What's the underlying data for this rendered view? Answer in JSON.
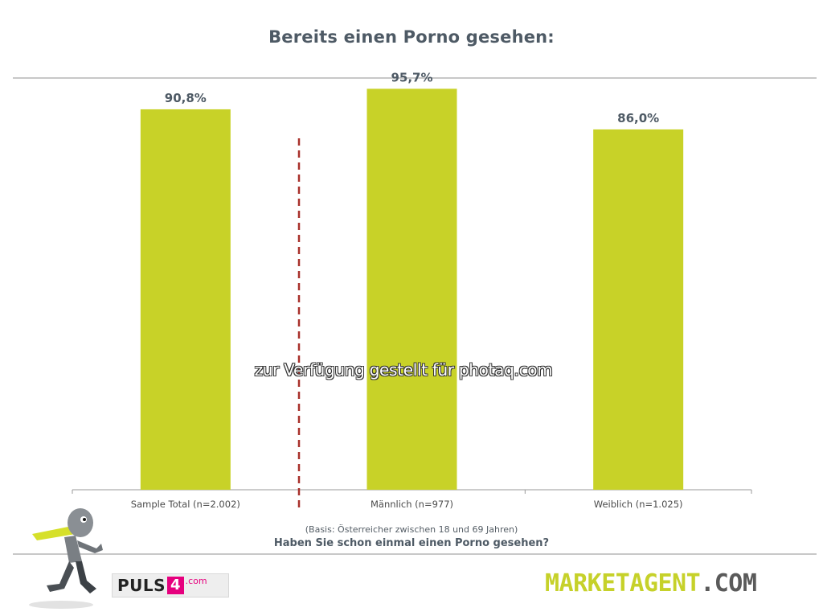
{
  "title": "Bereits einen Porno gesehen:",
  "chart_data": {
    "type": "bar",
    "categories": [
      "Sample Total (n=2.002)",
      "Männlich (n=977)",
      "Weiblich (n=1.025)"
    ],
    "values": [
      90.8,
      95.7,
      86.0
    ],
    "value_labels": [
      "90,8%",
      "95,7%",
      "86,0%"
    ],
    "ylim": [
      0,
      100
    ],
    "grid": false,
    "bar_color": "#c8d228",
    "value_label_color": "#4e5a65",
    "separator_color": "#a8302a"
  },
  "watermark": "zur Verfügung gestellt für photaq.com",
  "basis": "(Basis: Österreicher zwischen 18 und 69 Jahren)",
  "question": "Haben Sie schon einmal einen Porno gesehen?",
  "logos": {
    "puls_text": "PULS",
    "puls_four": "4",
    "puls_com": ".com",
    "marketagent_main": "MARKETAGENT",
    "marketagent_com": ".COM"
  }
}
